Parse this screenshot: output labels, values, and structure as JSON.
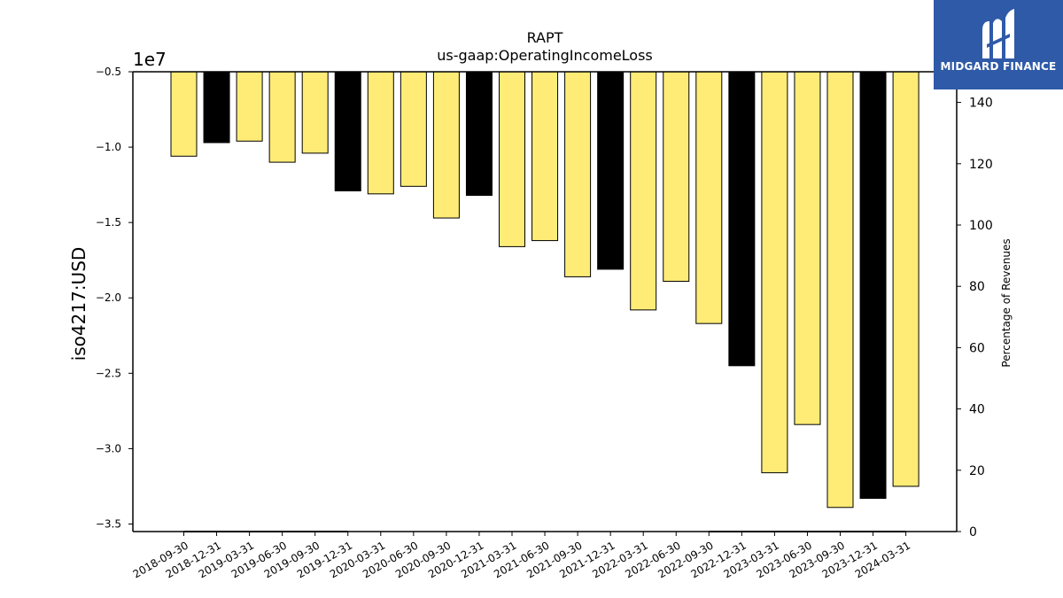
{
  "logo": {
    "text": "MIDGARD FINANCE",
    "background": "#2f5aa8"
  },
  "chart_data": {
    "type": "bar",
    "title": "RAPT",
    "subtitle": "us-gaap:OperatingIncomeLoss",
    "ylabel": "iso4217:USD",
    "y_offset_label": "1e7",
    "y2label": "Percentage of Revenues",
    "ylim": [
      -3.55,
      -0.5
    ],
    "y_ticks": [
      "−0.5",
      "−1.0",
      "−1.5",
      "−2.0",
      "−2.5",
      "−3.0",
      "−3.5"
    ],
    "y2lim": [
      0,
      150
    ],
    "y2_ticks": [
      "0",
      "20",
      "40",
      "60",
      "80",
      "100",
      "120",
      "140"
    ],
    "categories": [
      "2018-09-30",
      "2018-12-31",
      "2019-03-31",
      "2019-06-30",
      "2019-09-30",
      "2019-12-31",
      "2020-03-31",
      "2020-06-30",
      "2020-09-30",
      "2020-12-31",
      "2021-03-31",
      "2021-06-30",
      "2021-09-30",
      "2021-12-31",
      "2022-03-31",
      "2022-06-30",
      "2022-09-30",
      "2022-12-31",
      "2023-03-31",
      "2023-06-30",
      "2023-09-30",
      "2023-12-31",
      "2024-03-31"
    ],
    "values": [
      -1.06,
      -0.97,
      -0.96,
      -1.1,
      -1.04,
      -1.29,
      -1.31,
      -1.26,
      -1.47,
      -1.32,
      -1.66,
      -1.62,
      -1.86,
      -1.81,
      -2.08,
      -1.89,
      -2.17,
      -2.45,
      -3.16,
      -2.84,
      -3.39,
      -3.33,
      -3.25
    ],
    "bar_colors": [
      "#ffec77",
      "#000000",
      "#ffec77",
      "#ffec77",
      "#ffec77",
      "#000000",
      "#ffec77",
      "#ffec77",
      "#ffec77",
      "#000000",
      "#ffec77",
      "#ffec77",
      "#ffec77",
      "#000000",
      "#ffec77",
      "#ffec77",
      "#ffec77",
      "#000000",
      "#ffec77",
      "#ffec77",
      "#ffec77",
      "#000000",
      "#ffec77"
    ],
    "percent_of_revenues": [
      0,
      0,
      0,
      0,
      0,
      0,
      null,
      null,
      null,
      null,
      null,
      null,
      null,
      null,
      null,
      null,
      0,
      0,
      0,
      0,
      0,
      0,
      0
    ],
    "grid": false,
    "legend": "none"
  }
}
